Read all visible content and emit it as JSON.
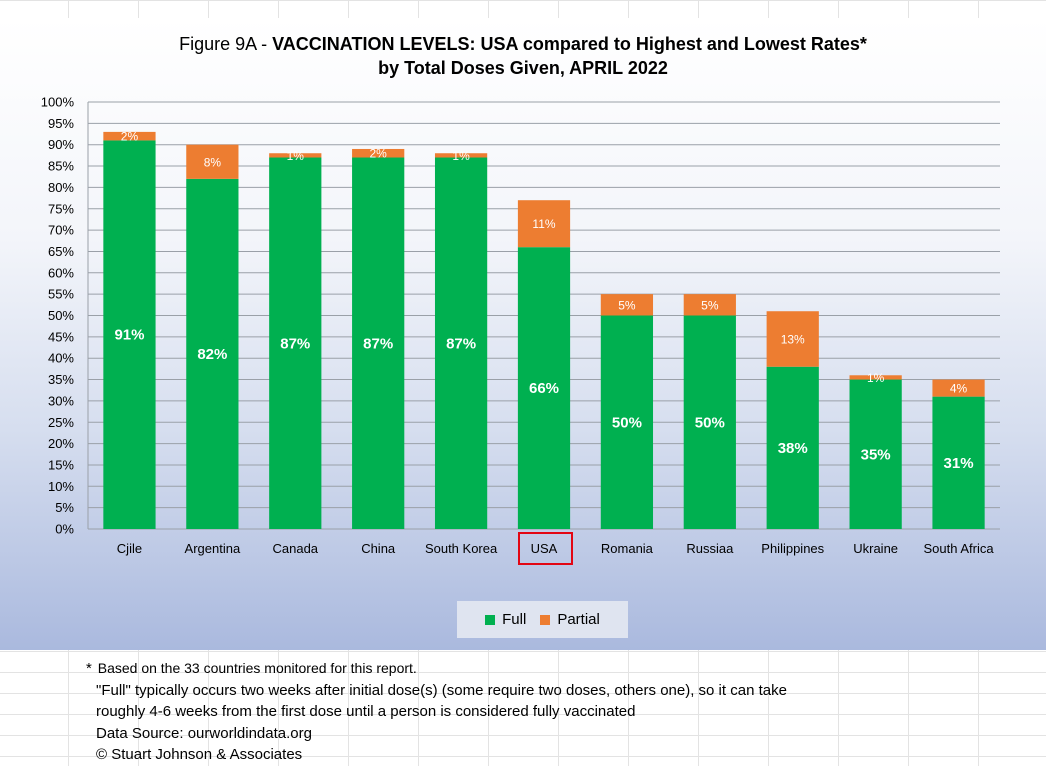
{
  "chart_data": {
    "type": "bar",
    "stacked": true,
    "title_lead": "Figure 9A - ",
    "title_bold": "VACCINATION LEVELS:  USA compared to Highest and Lowest Rates*",
    "title_line2": "by Total Doses Given, APRIL 2022",
    "categories": [
      "Cjile",
      "Argentina",
      "Canada",
      "China",
      "South Korea",
      "USA",
      "Romania",
      "Russiaa",
      "Philippines",
      "Ukraine",
      "South Africa"
    ],
    "series": [
      {
        "name": "Full",
        "color": "#00b050",
        "values": [
          91,
          82,
          87,
          87,
          87,
          66,
          50,
          50,
          38,
          35,
          31
        ]
      },
      {
        "name": "Partial",
        "color": "#ed7d31",
        "values": [
          2,
          8,
          1,
          2,
          1,
          11,
          5,
          5,
          13,
          1,
          4
        ]
      }
    ],
    "ylim": [
      0,
      100
    ],
    "ytick_step": 5,
    "value_format": "percent",
    "highlight_category": "USA",
    "grid": true,
    "legend_position": "bottom"
  },
  "notes": {
    "footnote_marker": "*",
    "footnote_text": " Based on the 33 countries monitored for this report.",
    "line1": "\"Full\" typically occurs two weeks after initial dose(s) (some require two doses, others one),  so it can take",
    "line2": "roughly 4-6 weeks from the first dose until a person is considered fully vaccinated",
    "line3": "Data Source:  ourworldindata.org",
    "line4": "© Stuart Johnson & Associates"
  }
}
